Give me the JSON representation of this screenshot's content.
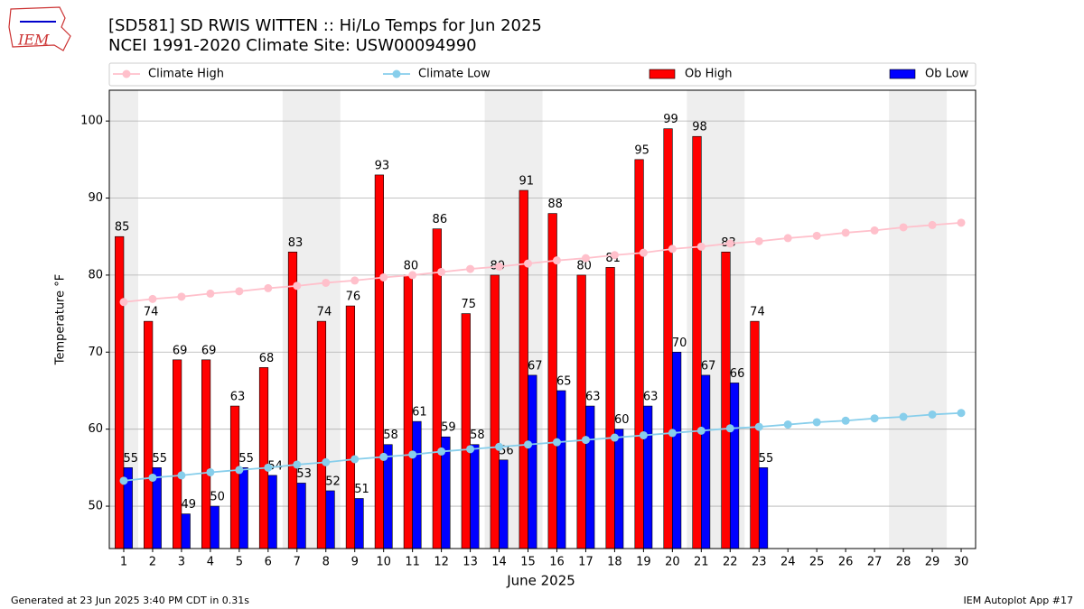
{
  "chart_data": {
    "type": "bar",
    "title": "[SD581] SD RWIS WITTEN :: Hi/Lo Temps for Jun 2025",
    "subtitle": "NCEI 1991-2020 Climate Site: USW00094990",
    "x_label": "June 2025",
    "y_label": "Temperature °F",
    "logo": "IEM",
    "footer_left": "Generated at 23 Jun 2025 3:40 PM CDT in 0.31s",
    "footer_right": "IEM Autoplot App #17",
    "x": [
      1,
      2,
      3,
      4,
      5,
      6,
      7,
      8,
      9,
      10,
      11,
      12,
      13,
      14,
      15,
      16,
      17,
      18,
      19,
      20,
      21,
      22,
      23,
      24,
      25,
      26,
      27,
      28,
      29,
      30
    ],
    "xlim": [
      0.5,
      30.5
    ],
    "xticks": [
      1,
      2,
      3,
      4,
      5,
      6,
      7,
      8,
      9,
      10,
      11,
      12,
      13,
      14,
      15,
      16,
      17,
      18,
      19,
      20,
      21,
      22,
      23,
      24,
      25,
      26,
      27,
      28,
      29,
      30
    ],
    "ylim": [
      44.5,
      104
    ],
    "yticks": [
      50,
      60,
      70,
      80,
      90,
      100
    ],
    "grid": true,
    "shaded_ranges": [
      [
        0.5,
        1.5
      ],
      [
        6.5,
        8.5
      ],
      [
        13.5,
        15.5
      ],
      [
        20.5,
        22.5
      ],
      [
        27.5,
        29.5
      ]
    ],
    "series": [
      {
        "name": "Climate High",
        "color": "#ffc0cb",
        "kind": "line",
        "values": [
          76.5,
          76.9,
          77.2,
          77.6,
          77.9,
          78.3,
          78.6,
          79.0,
          79.3,
          79.7,
          80.0,
          80.4,
          80.8,
          81.1,
          81.5,
          81.9,
          82.2,
          82.6,
          82.9,
          83.4,
          83.7,
          84.1,
          84.4,
          84.8,
          85.1,
          85.5,
          85.8,
          86.2,
          86.5,
          86.8
        ]
      },
      {
        "name": "Climate Low",
        "color": "#87ceeb",
        "kind": "line",
        "values": [
          53.3,
          53.7,
          54.0,
          54.4,
          54.7,
          55.0,
          55.4,
          55.7,
          56.1,
          56.4,
          56.7,
          57.1,
          57.4,
          57.7,
          58.0,
          58.3,
          58.6,
          58.9,
          59.2,
          59.5,
          59.8,
          60.1,
          60.3,
          60.6,
          60.9,
          61.1,
          61.4,
          61.6,
          61.9,
          62.1
        ]
      },
      {
        "name": "Ob High",
        "color": "#ff0000",
        "kind": "bar",
        "side": -1,
        "values": [
          85,
          74,
          69,
          69,
          63,
          68,
          83,
          74,
          76,
          93,
          80,
          86,
          75,
          80,
          91,
          88,
          80,
          81,
          95,
          99,
          98,
          83,
          74,
          null,
          null,
          null,
          null,
          null,
          null,
          null
        ]
      },
      {
        "name": "Ob Low",
        "color": "#0000ff",
        "kind": "bar",
        "side": 1,
        "values": [
          55,
          55,
          49,
          50,
          55,
          54,
          53,
          52,
          51,
          58,
          61,
          59,
          58,
          56,
          67,
          65,
          63,
          60,
          63,
          70,
          67,
          66,
          55,
          null,
          null,
          null,
          null,
          null,
          null,
          null
        ]
      }
    ]
  }
}
